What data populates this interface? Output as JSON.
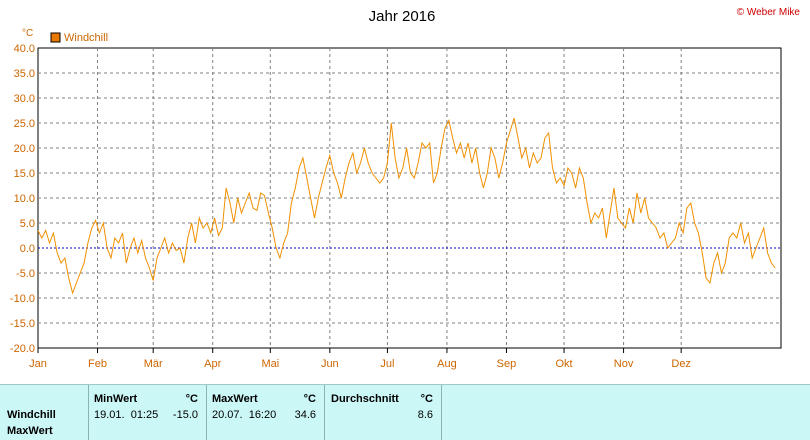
{
  "title": "Jahr 2016",
  "copyright": "© Weber Mike",
  "y_unit": "°C",
  "legend": {
    "label": "Windchill",
    "color": "#e87800"
  },
  "colors": {
    "series": "#f09000",
    "grid": "#808080",
    "zero_line": "#0000cc",
    "axis_text": "#cc6600"
  },
  "chart_data": {
    "type": "line",
    "title": "Jahr 2016",
    "ylabel": "°C",
    "ylim": [
      -20,
      40
    ],
    "yticks": [
      "40.0",
      "35.0",
      "30.0",
      "25.0",
      "20.0",
      "15.0",
      "10.0",
      "5.0",
      "0.0",
      "-5.0",
      "-10.0",
      "-15.0",
      "-20.0"
    ],
    "xticks": [
      "Jan",
      "Feb",
      "Mär",
      "Apr",
      "Mai",
      "Jun",
      "Jul",
      "Aug",
      "Sep",
      "Okt",
      "Nov",
      "Dez"
    ],
    "grid": true,
    "legend_position": "top-left",
    "series": [
      {
        "name": "Windchill",
        "x_unit": "day of year 2016",
        "points": [
          [
            1,
            3.5
          ],
          [
            3,
            2
          ],
          [
            5,
            3.5
          ],
          [
            7,
            1
          ],
          [
            9,
            3
          ],
          [
            11,
            -1
          ],
          [
            13,
            -3
          ],
          [
            15,
            -2
          ],
          [
            17,
            -6
          ],
          [
            19,
            -9
          ],
          [
            21,
            -7
          ],
          [
            23,
            -5
          ],
          [
            25,
            -3
          ],
          [
            27,
            1
          ],
          [
            29,
            4
          ],
          [
            31,
            5.5
          ],
          [
            33,
            3
          ],
          [
            35,
            5
          ],
          [
            37,
            0
          ],
          [
            39,
            -2
          ],
          [
            41,
            2
          ],
          [
            43,
            1
          ],
          [
            45,
            3
          ],
          [
            47,
            -3
          ],
          [
            49,
            0
          ],
          [
            51,
            2
          ],
          [
            53,
            -1
          ],
          [
            55,
            1.5
          ],
          [
            57,
            -2
          ],
          [
            59,
            -4
          ],
          [
            61,
            -6.5
          ],
          [
            63,
            -2
          ],
          [
            65,
            0
          ],
          [
            67,
            2
          ],
          [
            69,
            -1
          ],
          [
            71,
            1
          ],
          [
            73,
            -0.5
          ],
          [
            75,
            0
          ],
          [
            77,
            -3
          ],
          [
            79,
            2
          ],
          [
            81,
            5
          ],
          [
            83,
            1
          ],
          [
            85,
            6
          ],
          [
            87,
            4
          ],
          [
            89,
            5
          ],
          [
            91,
            3
          ],
          [
            93,
            6
          ],
          [
            95,
            2.5
          ],
          [
            97,
            4
          ],
          [
            99,
            12
          ],
          [
            101,
            9
          ],
          [
            103,
            5
          ],
          [
            105,
            10
          ],
          [
            107,
            7
          ],
          [
            109,
            9
          ],
          [
            111,
            11
          ],
          [
            113,
            8
          ],
          [
            115,
            7.5
          ],
          [
            117,
            11
          ],
          [
            119,
            10.5
          ],
          [
            121,
            7
          ],
          [
            123,
            4
          ],
          [
            125,
            0
          ],
          [
            127,
            -2
          ],
          [
            129,
            1
          ],
          [
            131,
            3
          ],
          [
            133,
            9
          ],
          [
            135,
            12
          ],
          [
            137,
            16
          ],
          [
            139,
            18
          ],
          [
            141,
            14
          ],
          [
            143,
            10
          ],
          [
            145,
            6
          ],
          [
            147,
            10
          ],
          [
            149,
            13
          ],
          [
            151,
            16
          ],
          [
            153,
            18.5
          ],
          [
            155,
            15
          ],
          [
            157,
            13
          ],
          [
            159,
            10
          ],
          [
            161,
            14
          ],
          [
            163,
            17
          ],
          [
            165,
            19
          ],
          [
            167,
            15
          ],
          [
            169,
            17
          ],
          [
            171,
            20
          ],
          [
            173,
            17
          ],
          [
            175,
            15
          ],
          [
            177,
            14
          ],
          [
            179,
            13
          ],
          [
            181,
            14
          ],
          [
            183,
            17
          ],
          [
            185,
            25
          ],
          [
            187,
            18
          ],
          [
            189,
            14
          ],
          [
            191,
            16
          ],
          [
            193,
            20
          ],
          [
            195,
            15
          ],
          [
            197,
            14
          ],
          [
            199,
            17
          ],
          [
            201,
            21
          ],
          [
            203,
            20
          ],
          [
            205,
            21
          ],
          [
            207,
            13
          ],
          [
            209,
            15
          ],
          [
            211,
            20
          ],
          [
            213,
            24
          ],
          [
            215,
            25.5
          ],
          [
            217,
            22
          ],
          [
            219,
            19
          ],
          [
            221,
            21
          ],
          [
            223,
            18
          ],
          [
            225,
            21
          ],
          [
            227,
            17
          ],
          [
            229,
            20
          ],
          [
            231,
            15
          ],
          [
            233,
            12
          ],
          [
            235,
            15
          ],
          [
            237,
            20
          ],
          [
            239,
            18
          ],
          [
            241,
            14
          ],
          [
            243,
            17
          ],
          [
            245,
            21
          ],
          [
            247,
            23.5
          ],
          [
            249,
            26
          ],
          [
            251,
            22
          ],
          [
            253,
            18
          ],
          [
            255,
            20
          ],
          [
            257,
            16
          ],
          [
            259,
            19
          ],
          [
            261,
            17
          ],
          [
            263,
            18
          ],
          [
            265,
            22
          ],
          [
            267,
            23
          ],
          [
            269,
            16
          ],
          [
            271,
            13
          ],
          [
            273,
            14
          ],
          [
            275,
            12.5
          ],
          [
            277,
            16
          ],
          [
            279,
            15
          ],
          [
            281,
            12
          ],
          [
            283,
            16
          ],
          [
            285,
            14
          ],
          [
            287,
            9
          ],
          [
            289,
            5
          ],
          [
            291,
            7
          ],
          [
            293,
            6
          ],
          [
            295,
            8
          ],
          [
            297,
            2
          ],
          [
            299,
            7
          ],
          [
            301,
            12
          ],
          [
            303,
            6
          ],
          [
            305,
            5
          ],
          [
            307,
            4
          ],
          [
            309,
            8
          ],
          [
            311,
            5
          ],
          [
            313,
            11
          ],
          [
            315,
            7
          ],
          [
            317,
            10
          ],
          [
            319,
            6
          ],
          [
            321,
            5
          ],
          [
            323,
            4
          ],
          [
            325,
            2
          ],
          [
            327,
            3
          ],
          [
            329,
            0
          ],
          [
            331,
            1
          ],
          [
            333,
            2
          ],
          [
            335,
            5
          ],
          [
            337,
            3
          ],
          [
            339,
            8
          ],
          [
            341,
            9
          ],
          [
            343,
            5
          ],
          [
            345,
            3
          ],
          [
            347,
            -1
          ],
          [
            349,
            -6
          ],
          [
            351,
            -7
          ],
          [
            353,
            -3
          ],
          [
            355,
            -1
          ],
          [
            357,
            -5
          ],
          [
            359,
            -3
          ],
          [
            361,
            2
          ],
          [
            363,
            3
          ],
          [
            365,
            2
          ],
          [
            367,
            5
          ],
          [
            369,
            1
          ],
          [
            371,
            3
          ],
          [
            373,
            -2
          ],
          [
            375,
            0
          ],
          [
            377,
            2
          ],
          [
            379,
            4
          ],
          [
            381,
            -1
          ],
          [
            383,
            -3
          ],
          [
            385,
            -4
          ]
        ]
      }
    ]
  },
  "stats": {
    "rows": [
      "Windchill",
      "MaxWert"
    ],
    "min": {
      "header": "MinWert",
      "unit": "°C",
      "date": "19.01.  01:25",
      "value": "-15.0"
    },
    "max": {
      "header": "MaxWert",
      "unit": "°C",
      "date": "20.07.  16:20",
      "value": "34.6"
    },
    "avg": {
      "header": "Durchschnitt",
      "unit": "°C",
      "value": "8.6"
    }
  }
}
